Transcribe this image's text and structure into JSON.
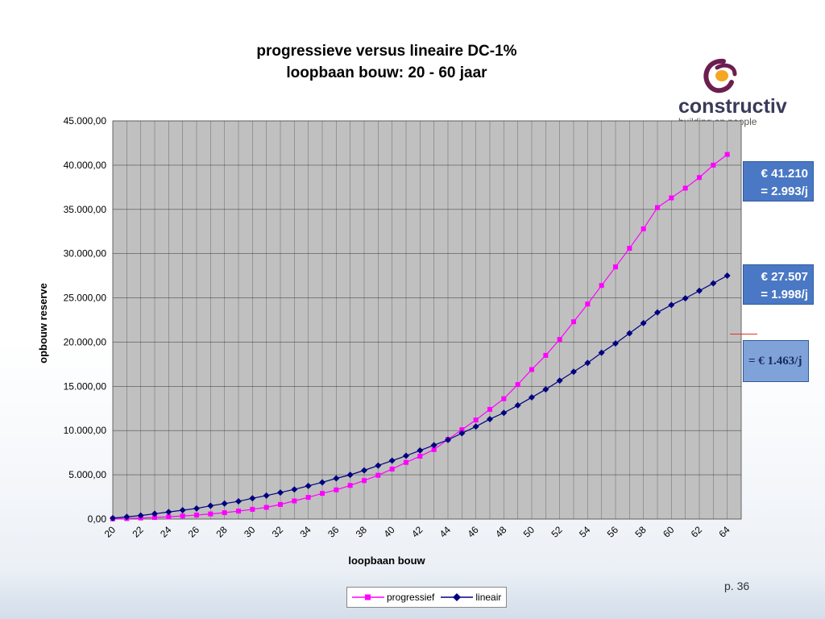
{
  "slide": {
    "title_line1": "progressieve versus lineaire DC-1%",
    "title_line2": "loopbaan bouw: 20 - 60 jaar",
    "logo_word": "constructiv",
    "logo_tagline": "building on people",
    "page_number": "p. 36",
    "callouts": {
      "progressive_amount": "€ 41.210",
      "progressive_per_year": "= 2.993/j",
      "linear_amount": "€ 27.507",
      "linear_per_year": "= 1.998/j",
      "third_per_year": "= € 1.463/j"
    },
    "colors": {
      "progressive": "#ff00ff",
      "linear": "#000080",
      "plot_bg": "#c0c0c0",
      "callout_bg": "#4a78c4",
      "logo_purple": "#6b1f4f",
      "logo_orange": "#f5a623"
    }
  },
  "chart_data": {
    "type": "line",
    "title": "progressieve versus lineaire DC-1%\nloopbaan bouw: 20 - 60 jaar",
    "xlabel": "loopbaan bouw",
    "ylabel": "opbouw reserve",
    "x_tick_labels": [
      "20",
      "22",
      "24",
      "26",
      "28",
      "30",
      "32",
      "34",
      "36",
      "38",
      "40",
      "42",
      "44",
      "46",
      "48",
      "50",
      "52",
      "54",
      "56",
      "58",
      "60",
      "62",
      "64"
    ],
    "y_tick_labels": [
      "0,00",
      "5.000,00",
      "10.000,00",
      "15.000,00",
      "20.000,00",
      "25.000,00",
      "30.000,00",
      "35.000,00",
      "40.000,00",
      "45.000,00"
    ],
    "ylim": [
      0,
      45000
    ],
    "xlim": [
      20,
      65
    ],
    "grid": true,
    "legend_position": "bottom",
    "x": [
      20,
      21,
      22,
      23,
      24,
      25,
      26,
      27,
      28,
      29,
      30,
      31,
      32,
      33,
      34,
      35,
      36,
      37,
      38,
      39,
      40,
      41,
      42,
      43,
      44,
      45,
      46,
      47,
      48,
      49,
      50,
      51,
      52,
      53,
      54,
      55,
      56,
      57,
      58,
      59,
      60,
      61,
      62,
      63,
      64
    ],
    "series": [
      {
        "name": "progressief",
        "marker": "square",
        "values": [
          20,
          60,
          120,
          180,
          250,
          350,
          450,
          580,
          720,
          900,
          1100,
          1320,
          1650,
          2050,
          2450,
          2900,
          3300,
          3800,
          4350,
          4950,
          5650,
          6400,
          7100,
          7850,
          9000,
          10100,
          11200,
          12400,
          13600,
          15200,
          16900,
          18500,
          20300,
          22300,
          24300,
          26400,
          28500,
          30600,
          32800,
          35200,
          36300,
          37400,
          38600,
          40000,
          41210
        ]
      },
      {
        "name": "lineair",
        "marker": "diamond",
        "values": [
          100,
          250,
          400,
          600,
          800,
          1000,
          1200,
          1500,
          1750,
          2000,
          2350,
          2650,
          3000,
          3350,
          3750,
          4150,
          4600,
          5000,
          5500,
          6050,
          6600,
          7150,
          7750,
          8350,
          8950,
          9700,
          10450,
          11300,
          12000,
          12850,
          13750,
          14650,
          15650,
          16650,
          17650,
          18800,
          19850,
          21000,
          22150,
          23350,
          24200,
          24950,
          25800,
          26650,
          27507
        ]
      }
    ]
  }
}
